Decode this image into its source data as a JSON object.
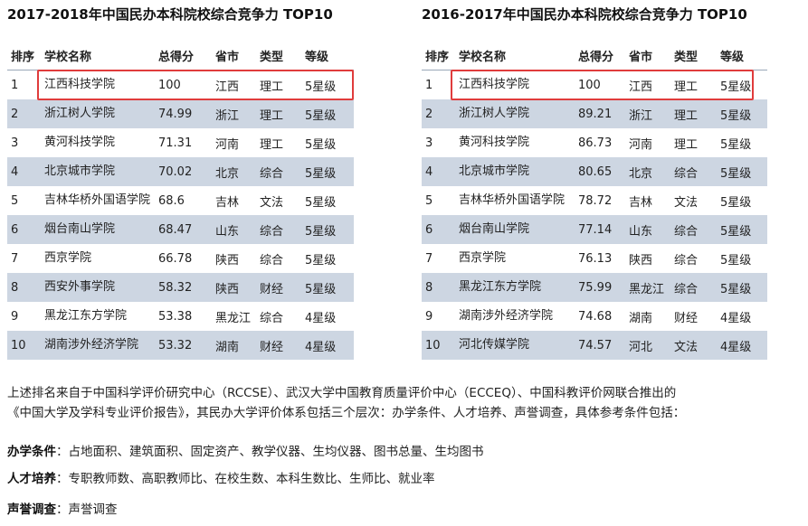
{
  "left": {
    "title": "2017-2018年中国民办本科院校综合竞争力 TOP10",
    "headers": [
      "排序",
      "学校名称",
      "总得分",
      "省市",
      "类型",
      "等级"
    ],
    "rows": [
      [
        "1",
        "江西科技学院",
        "100",
        "江西",
        "理工",
        "5星级"
      ],
      [
        "2",
        "浙江树人学院",
        "74.99",
        "浙江",
        "理工",
        "5星级"
      ],
      [
        "3",
        "黄河科技学院",
        "71.31",
        "河南",
        "理工",
        "5星级"
      ],
      [
        "4",
        "北京城市学院",
        "70.02",
        "北京",
        "综合",
        "5星级"
      ],
      [
        "5",
        "吉林华桥外国语学院",
        "68.6",
        "吉林",
        "文法",
        "5星级"
      ],
      [
        "6",
        "烟台南山学院",
        "68.47",
        "山东",
        "综合",
        "5星级"
      ],
      [
        "7",
        "西京学院",
        "66.78",
        "陕西",
        "综合",
        "5星级"
      ],
      [
        "8",
        "西安外事学院",
        "58.32",
        "陕西",
        "财经",
        "5星级"
      ],
      [
        "9",
        "黑龙江东方学院",
        "53.38",
        "黑龙江",
        "综合",
        "4星级"
      ],
      [
        "10",
        "湖南涉外经济学院",
        "53.32",
        "湖南",
        "财经",
        "4星级"
      ]
    ]
  },
  "right": {
    "title": "2016-2017年中国民办本科院校综合竞争力 TOP10",
    "headers": [
      "排序",
      "学校名称",
      "总得分",
      "省市",
      "类型",
      "等级"
    ],
    "rows": [
      [
        "1",
        "江西科技学院",
        "100",
        "江西",
        "理工",
        "5星级"
      ],
      [
        "2",
        "浙江树人学院",
        "89.21",
        "浙江",
        "理工",
        "5星级"
      ],
      [
        "3",
        "黄河科技学院",
        "86.73",
        "河南",
        "理工",
        "5星级"
      ],
      [
        "4",
        "北京城市学院",
        "80.65",
        "北京",
        "综合",
        "5星级"
      ],
      [
        "5",
        "吉林华桥外国语学院",
        "78.72",
        "吉林",
        "文法",
        "5星级"
      ],
      [
        "6",
        "烟台南山学院",
        "77.14",
        "山东",
        "综合",
        "5星级"
      ],
      [
        "7",
        "西京学院",
        "76.13",
        "陕西",
        "综合",
        "5星级"
      ],
      [
        "8",
        "黑龙江东方学院",
        "75.99",
        "黑龙江",
        "综合",
        "5星级"
      ],
      [
        "9",
        "湖南涉外经济学院",
        "74.68",
        "湖南",
        "财经",
        "4星级"
      ],
      [
        "10",
        "河北传媒学院",
        "74.57",
        "河北",
        "文法",
        "4星级"
      ]
    ]
  },
  "source_line1": "上述排名来自于中国科学评价研究中心（RCCSE）、武汉大学中国教育质量评价中心（ECCEQ）、中国科教评价网联合推出的",
  "source_line2": "《中国大学及学科专业评价报告》，其民办大学评价体系包括三个层次：办学条件、人才培养、声誉调查，具体参考条件包括：",
  "criteria": [
    {
      "key": "办学条件",
      "sep": "：",
      "value": "占地面积、建筑面积、固定资产、教学仪器、生均仪器、图书总量、生均图书"
    },
    {
      "key": "人才培养",
      "sep": "：",
      "value": "专职教师数、高职教师比、在校生数、本科生数比、生师比、就业率"
    },
    {
      "key": "声誉调查",
      "sep": "：",
      "value": "声誉调查"
    }
  ],
  "colors": {
    "stripe": "#cdd6e2",
    "highlight": "#e03c3c"
  }
}
